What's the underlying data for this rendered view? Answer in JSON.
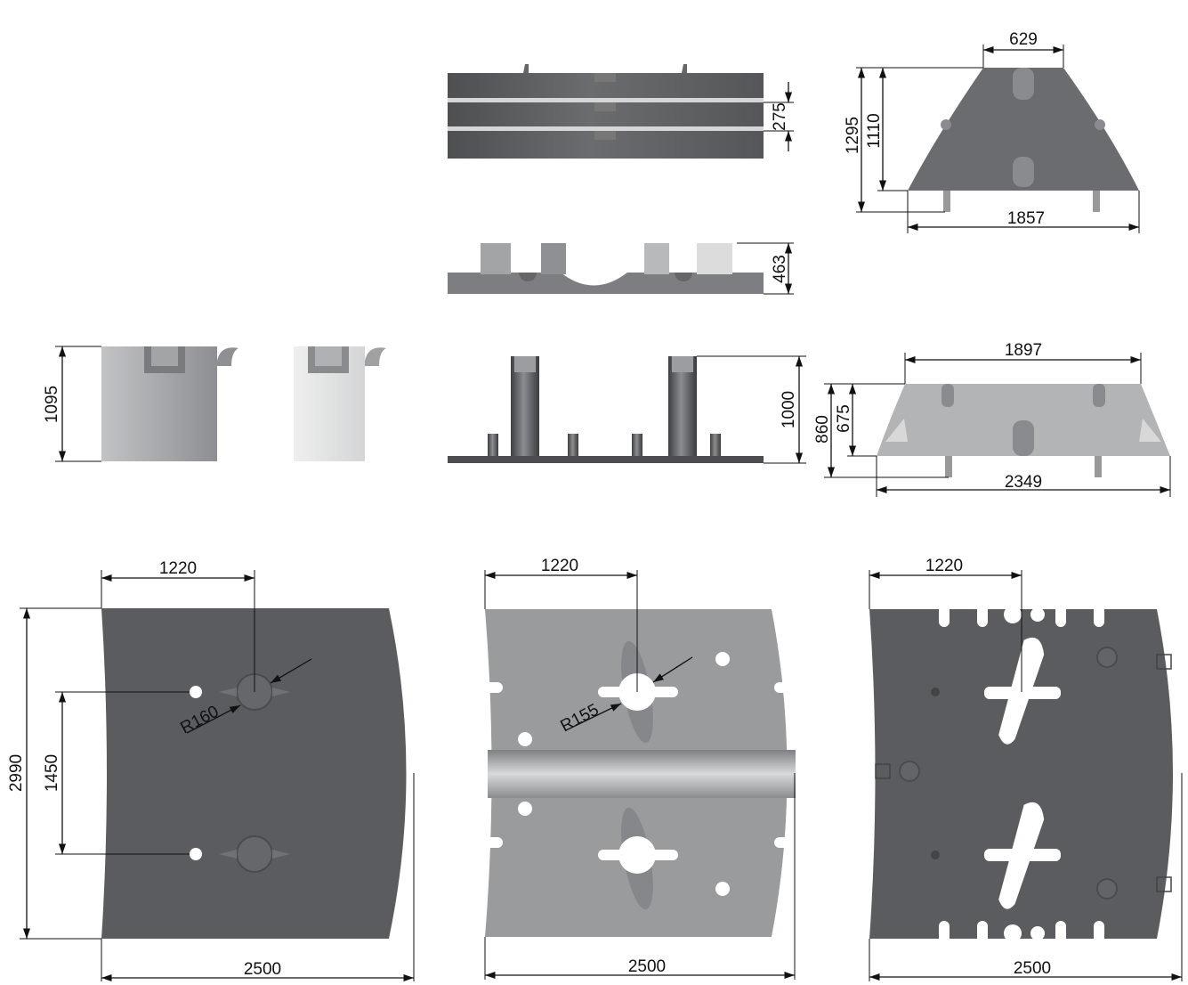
{
  "colors": {
    "background": "#ffffff",
    "dark_steel": "#5b5c5f",
    "mid_steel": "#9a9b9d",
    "light_steel": "#cfd0d1",
    "line": "#111111"
  },
  "dimensions": {
    "stack_height": "275",
    "base_plate_height": "463",
    "column_height": "1000",
    "side_block_height": "1095",
    "trapezoid_top_top_width": "629",
    "trapezoid_top_total_height": "1295",
    "trapezoid_top_body_height": "1110",
    "trapezoid_top_bottom_width": "1857",
    "trapezoid_bottom_top_width": "1897",
    "trapezoid_bottom_total_height": "860",
    "trapezoid_bottom_body_height": "675",
    "trapezoid_bottom_bottom_width": "2349",
    "plate1_offset": "1220",
    "plate1_height": "2990",
    "plate1_hole_spacing": "1450",
    "plate1_radius": "R160",
    "plate1_width": "2500",
    "plate2_offset": "1220",
    "plate2_radius": "R155",
    "plate2_width": "2500",
    "plate3_offset": "1220",
    "plate3_width": "2500"
  }
}
